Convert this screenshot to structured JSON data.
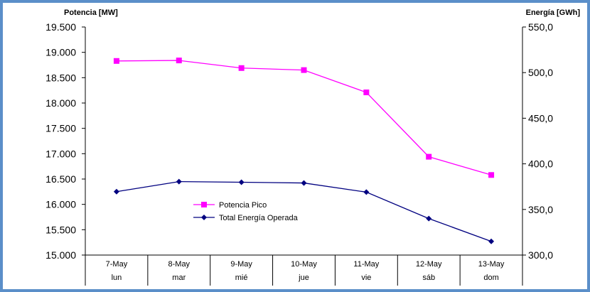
{
  "chart_data": {
    "type": "line",
    "categories": [
      "7-May",
      "8-May",
      "9-May",
      "10-May",
      "11-May",
      "12-May",
      "13-May"
    ],
    "category_days": [
      "lun",
      "mar",
      "mié",
      "jue",
      "vie",
      "sáb",
      "dom"
    ],
    "series": [
      {
        "name": "Potencia Pico",
        "axis": "left",
        "color": "#ff00ff",
        "marker": "square",
        "values": [
          18830,
          18840,
          18690,
          18650,
          18210,
          16940,
          16580
        ]
      },
      {
        "name": "Total Energía Operada",
        "axis": "right",
        "color": "#000080",
        "marker": "diamond",
        "values": [
          369.5,
          380.5,
          379.8,
          379.0,
          369.0,
          340.0,
          315.0
        ]
      }
    ],
    "ylabel": "Potencia [MW]",
    "ylabel_right": "Energía [GWh]",
    "ylim": [
      15000,
      19500
    ],
    "yticks": [
      "15.000",
      "15.500",
      "16.000",
      "16.500",
      "17.000",
      "17.500",
      "18.000",
      "18.500",
      "19.000",
      "19.500"
    ],
    "ylim_right": [
      300,
      550
    ],
    "yticks_right": [
      "300,0",
      "350,0",
      "400,0",
      "450,0",
      "500,0",
      "550,0"
    ],
    "grid": false,
    "legend": "bottom-center"
  }
}
